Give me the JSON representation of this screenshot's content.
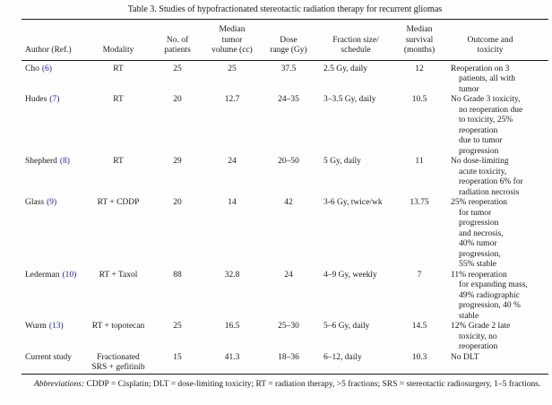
{
  "title": "Table 3. Studies of hypofractionated stereotactic radiation therapy for recurrent gliomas",
  "colors": {
    "ref_link": "#26268c",
    "text": "#1b1b1b",
    "rule": "#1a1a1a",
    "background": "#fdfdfd"
  },
  "columns": [
    {
      "label": "Author (Ref.)"
    },
    {
      "label": "Modality"
    },
    {
      "label": "No. of\npatients"
    },
    {
      "label": "Median\ntumor\nvolume (cc)"
    },
    {
      "label": "Dose\nrange (Gy)"
    },
    {
      "label": "Fraction size/\nschedule"
    },
    {
      "label": "Median\nsurvival\n(months)"
    },
    {
      "label": "Outcome and\ntoxicity"
    }
  ],
  "rows": [
    {
      "author": {
        "name": "Cho",
        "ref": "(6)"
      },
      "modality": "RT",
      "patients": "25",
      "volume": "25",
      "dose_range": "37.5",
      "fraction": "2.5 Gy, daily",
      "survival": "12",
      "outcome": "Reoperation on 3\npatients, all with\ntumor"
    },
    {
      "author": {
        "name": "Hudes",
        "ref": "(7)"
      },
      "modality": "RT",
      "patients": "20",
      "volume": "12.7",
      "dose_range": "24–35",
      "fraction": "3–3.5 Gy, daily",
      "survival": "10.5",
      "outcome": "No Grade 3 toxicity,\nno reoperation due\nto toxicity, 25%\nreoperation\ndue to tumor\nprogression"
    },
    {
      "author": {
        "name": "Shepherd",
        "ref": "(8)"
      },
      "modality": "RT",
      "patients": "29",
      "volume": "24",
      "dose_range": "20–50",
      "fraction": "5 Gy, daily",
      "survival": "11",
      "outcome": "No dose-limiting\nacute toxicity,\nreoperation 6% for\nradiation necrosis"
    },
    {
      "author": {
        "name": "Glass",
        "ref": "(9)"
      },
      "modality": "RT + CDDP",
      "patients": "20",
      "volume": "14",
      "dose_range": "42",
      "fraction": "3-6 Gy, twice/wk",
      "survival": "13.75",
      "outcome": "25% reoperation\nfor tumor\nprogression\nand necrosis,\n40% tumor\nprogression,\n55% stable"
    },
    {
      "author": {
        "name": "Lederman",
        "ref": "(10)"
      },
      "modality": "RT + Taxol",
      "patients": "88",
      "volume": "32.8",
      "dose_range": "24",
      "fraction": "4–9 Gy, weekly",
      "survival": "7",
      "outcome": "11% reoperation\nfor expanding mass,\n49% radiographic\nprogression, 40 %\nstable"
    },
    {
      "author": {
        "name": "Wurm",
        "ref": "(13)"
      },
      "modality": "RT + topotecan",
      "patients": "25",
      "volume": "16.5",
      "dose_range": "25–30",
      "fraction": "5–6 Gy, daily",
      "survival": "14.5",
      "outcome": "12% Grade 2 late\ntoxicity, no\nreoperation"
    },
    {
      "author": {
        "name": "Current study",
        "ref": ""
      },
      "modality": "Fractionated\nSRS + gefitinib",
      "patients": "15",
      "volume": "41.3",
      "dose_range": "18–36",
      "fraction": "6–12, daily",
      "survival": "10.3",
      "outcome": "No DLT"
    }
  ],
  "footnote": {
    "label": "Abbreviations:",
    "text": " CDDP = Cisplatin; DLT = dose-limiting toxicity; RT = radiation therapy, >5 fractions; SRS = stereotactic radiosurgery, 1–5 fractions."
  }
}
